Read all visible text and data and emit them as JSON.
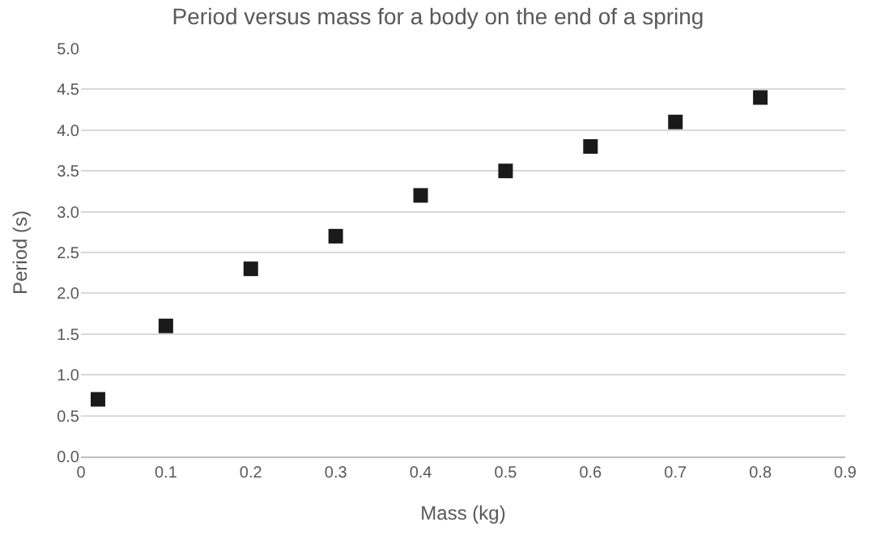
{
  "chart_data": {
    "type": "scatter",
    "title": "Period versus mass for a body on the end of a spring",
    "xlabel": "Mass (kg)",
    "ylabel": "Period (s)",
    "x": [
      0.02,
      0.1,
      0.2,
      0.3,
      0.4,
      0.5,
      0.6,
      0.7,
      0.8
    ],
    "series": [
      {
        "color": "#1a1a1a",
        "values": [
          0.7,
          1.6,
          2.3,
          2.7,
          3.2,
          3.5,
          3.8,
          4.1,
          4.4
        ]
      }
    ],
    "xlim": [
      0,
      0.9
    ],
    "xticks": [
      0,
      0.1,
      0.2,
      0.3,
      0.4,
      0.5,
      0.6,
      0.7,
      0.8,
      0.9
    ],
    "ylim": [
      0,
      5.0
    ],
    "yticks": [
      {
        "value": 0,
        "label": "0.0"
      },
      0.5,
      {
        "value": 1,
        "label": "1.0"
      },
      1.5,
      {
        "value": 2,
        "label": "2.0"
      },
      2.5,
      {
        "value": 3,
        "label": "3.0"
      },
      3.5,
      {
        "value": 4,
        "label": "4.0"
      },
      4.5,
      {
        "value": 5,
        "label": "5.0"
      }
    ],
    "grid": "y",
    "marker": "square"
  }
}
